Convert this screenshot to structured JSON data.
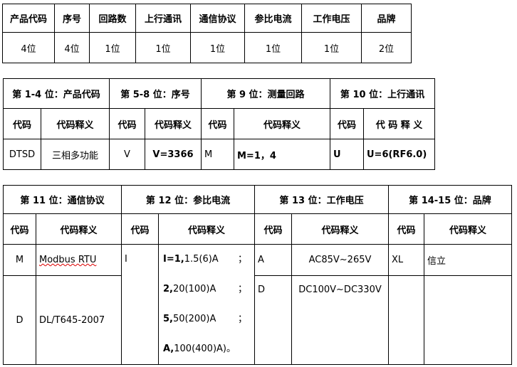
{
  "table1": {
    "headers": [
      "产品代码",
      "序号",
      "回路数",
      "上行通讯",
      "通信协议",
      "参比电流",
      "工作电压",
      "品牌"
    ],
    "values": [
      "4位",
      "4位",
      "1位",
      "1位",
      "1位",
      "1位",
      "1位",
      "2位"
    ]
  },
  "table2": {
    "groups": [
      "第 1-4 位：产品代码",
      "第 5-8 位：序号",
      "第 9 位：测量回路",
      "第 10 位：上行通讯"
    ],
    "sub": [
      "代码",
      "代码释义",
      "代码",
      "代码释义",
      "代码",
      "代码释义",
      "代码",
      "代 码 释 义"
    ],
    "row": [
      "DTSD",
      "三相多功能",
      "V",
      "V=3366",
      "M",
      "M=1，4",
      "U",
      "U=6(RF6.0)"
    ]
  },
  "table3": {
    "groups": [
      "第 11 位：通信协议",
      "第 12 位：参比电流",
      "第 13 位：工作电压",
      "第 14-15 位：品牌"
    ],
    "sub": [
      "代码",
      "代码释义",
      "代码",
      "代码释义",
      "代码",
      "代码释义",
      "代码",
      "代码释义"
    ],
    "protocol": [
      {
        "code": "M",
        "desc": "Modbus RTU"
      },
      {
        "code": "D",
        "desc": "DL/T645-2007"
      }
    ],
    "current": {
      "code": "I",
      "lines": [
        {
          "b": "I=1,",
          "t": "1.5(6)A",
          "end": "；"
        },
        {
          "b": "2,",
          "t": "20(100)A",
          "end": "；"
        },
        {
          "b": "5,",
          "t": "50(200)A",
          "end": "；"
        },
        {
          "b": "A,",
          "t": "100(400)A)。",
          "end": ""
        }
      ]
    },
    "voltage": [
      {
        "code": "A",
        "desc": "AC85V~265V"
      },
      {
        "code": "D",
        "desc": "DC100V~DC330V"
      }
    ],
    "brand": [
      {
        "code": "XL",
        "desc": "信立"
      }
    ]
  }
}
